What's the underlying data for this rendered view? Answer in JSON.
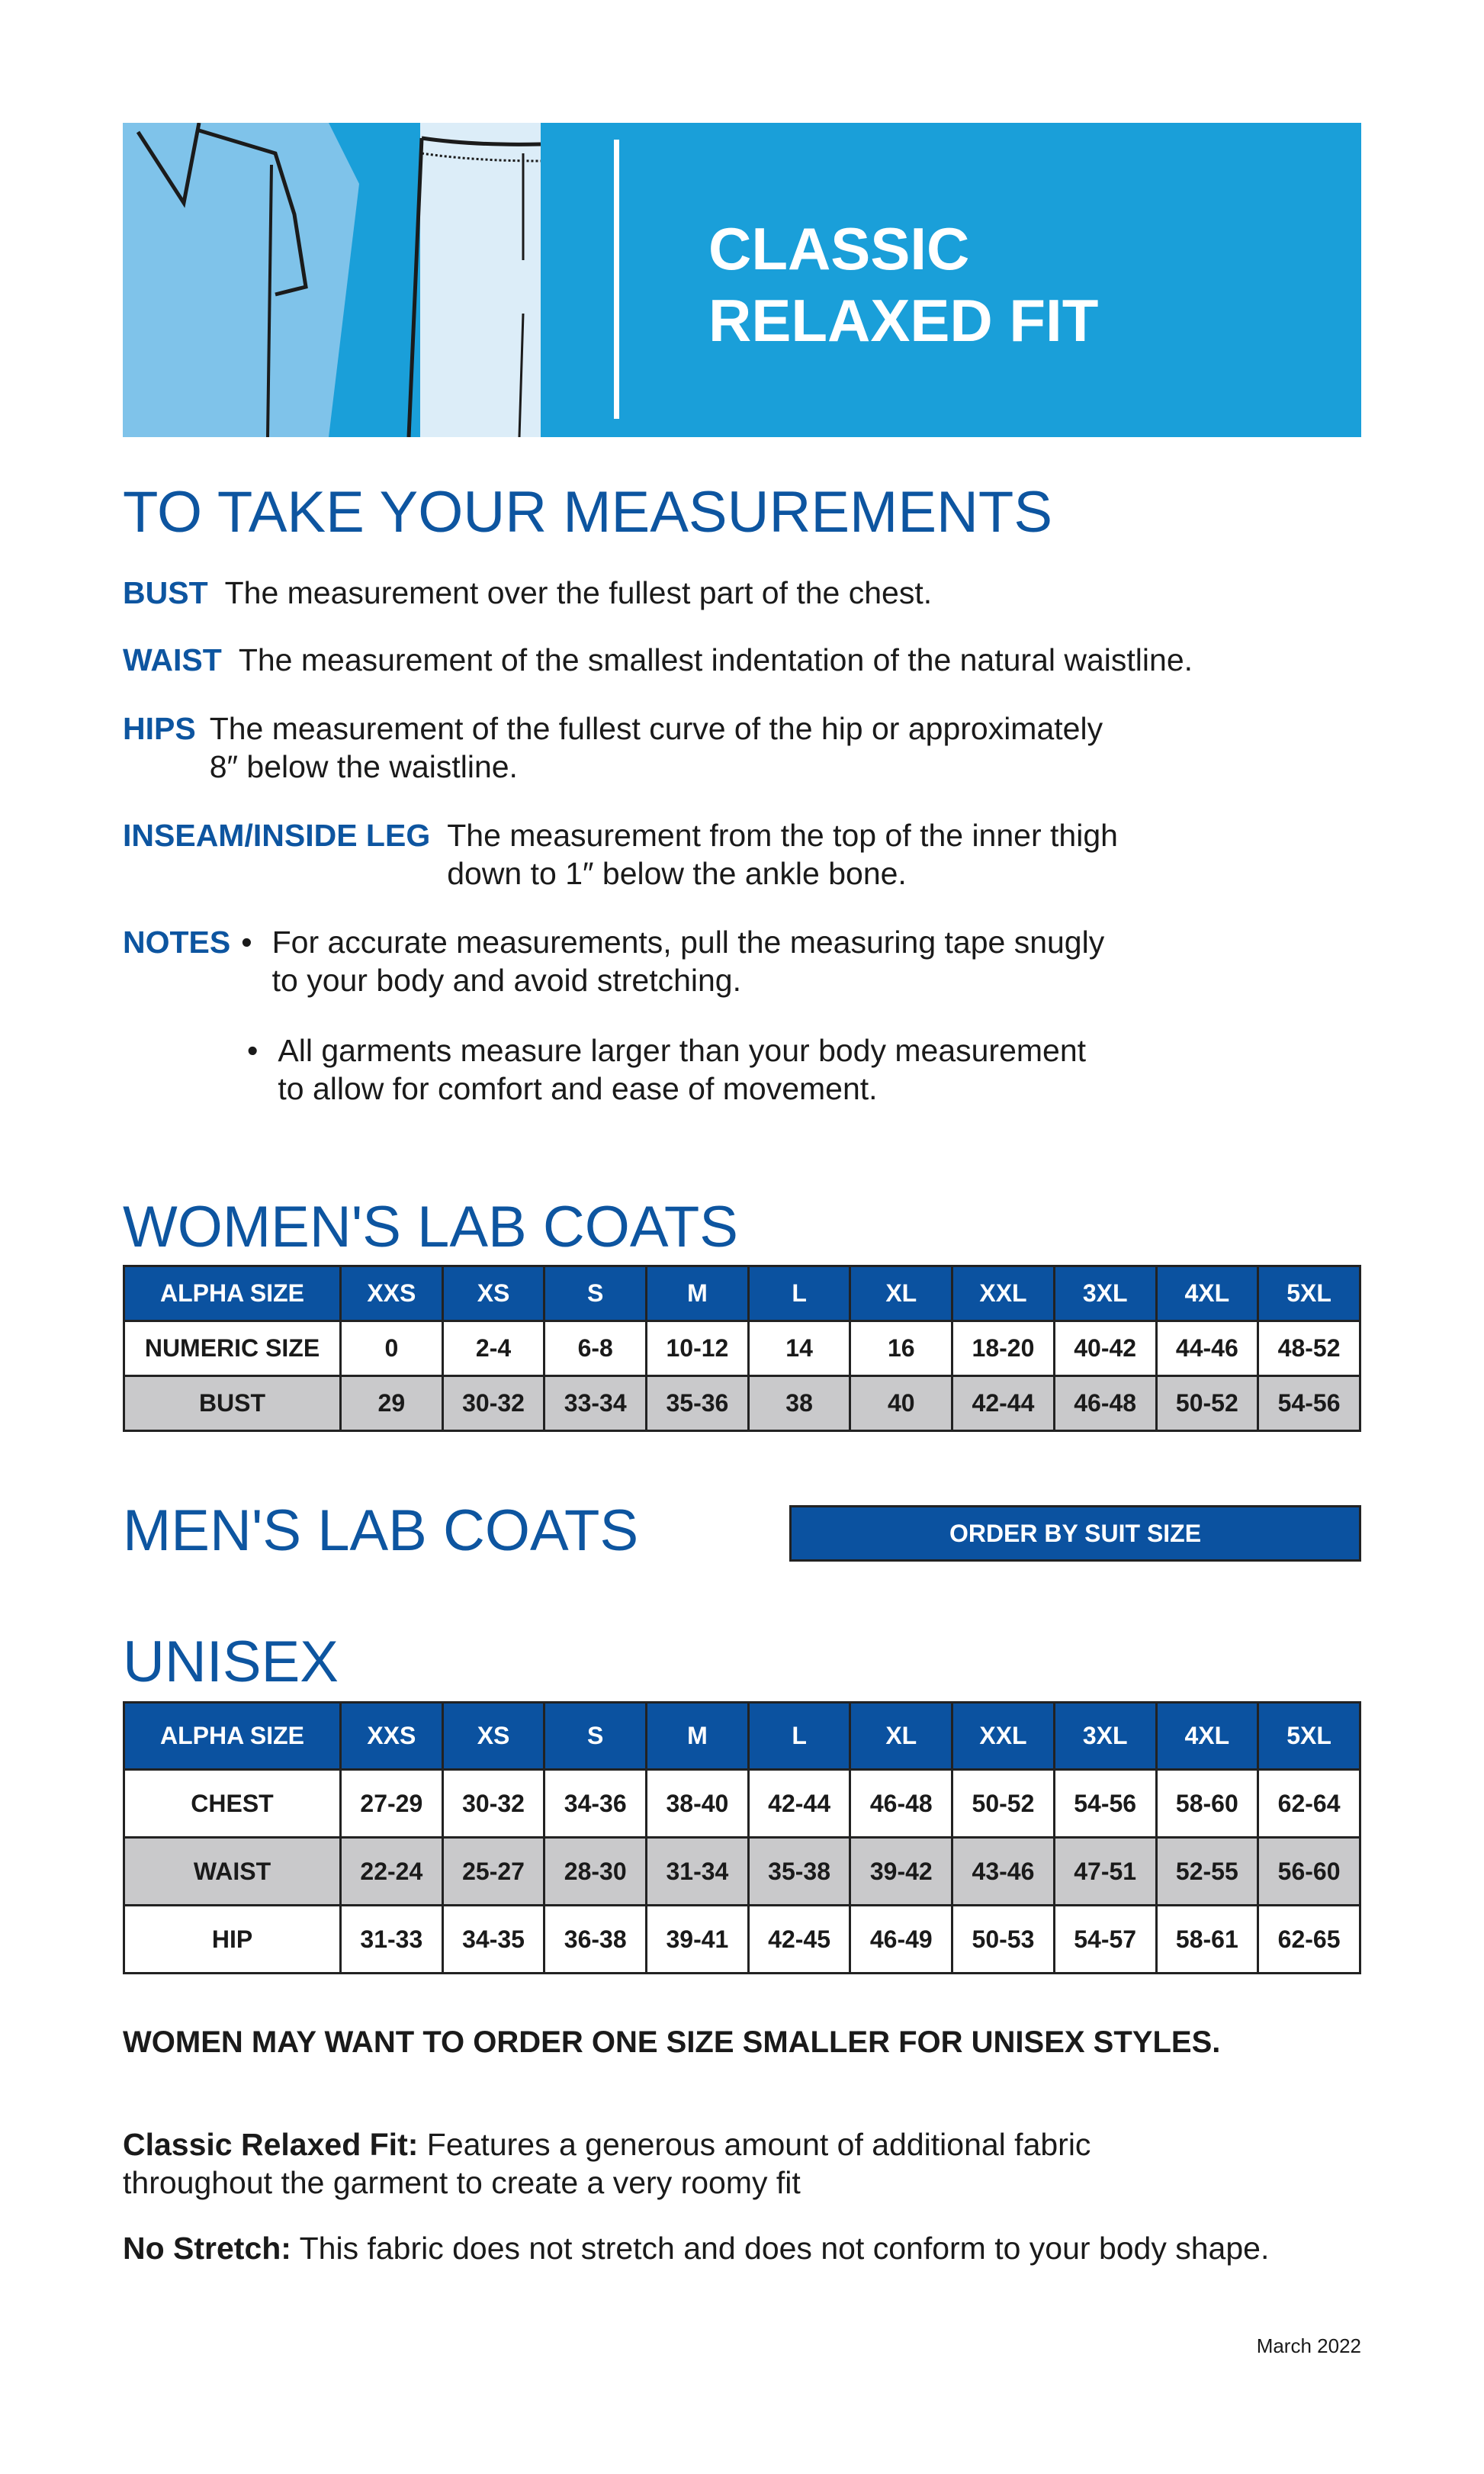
{
  "banner": {
    "title_line1": "CLASSIC",
    "title_line2": "RELAXED FIT"
  },
  "measurements": {
    "heading": "TO TAKE YOUR MEASUREMENTS",
    "items": [
      {
        "term": "BUST",
        "text": "The measurement over the fullest part of the chest."
      },
      {
        "term": "WAIST",
        "text": "The measurement of the smallest indentation of the natural waistline."
      },
      {
        "term": "HIPS",
        "text": "The measurement of the fullest curve of the hip or approximately\n8″ below the waistline."
      },
      {
        "term": "INSEAM/INSIDE LEG",
        "text": "The measurement from the top of the inner thigh\ndown to 1″ below the ankle bone."
      }
    ],
    "notes_term": "NOTES",
    "notes": [
      "For accurate measurements, pull the measuring tape snugly\nto your body and avoid stretching.",
      "All garments measure larger than your body measurement\nto allow for comfort and ease of movement."
    ]
  },
  "womens": {
    "heading": "WOMEN'S LAB COATS",
    "header": [
      "ALPHA SIZE",
      "XXS",
      "XS",
      "S",
      "M",
      "L",
      "XL",
      "XXL",
      "3XL",
      "4XL",
      "5XL"
    ],
    "rows": [
      [
        "NUMERIC SIZE",
        "0",
        "2-4",
        "6-8",
        "10-12",
        "14",
        "16",
        "18-20",
        "40-42",
        "44-46",
        "48-52"
      ],
      [
        "BUST",
        "29",
        "30-32",
        "33-34",
        "35-36",
        "38",
        "40",
        "42-44",
        "46-48",
        "50-52",
        "54-56"
      ]
    ]
  },
  "mens": {
    "heading": "MEN'S LAB COATS",
    "button": "ORDER BY SUIT SIZE"
  },
  "unisex": {
    "heading": "UNISEX",
    "header": [
      "ALPHA SIZE",
      "XXS",
      "XS",
      "S",
      "M",
      "L",
      "XL",
      "XXL",
      "3XL",
      "4XL",
      "5XL"
    ],
    "rows": [
      [
        "CHEST",
        "27-29",
        "30-32",
        "34-36",
        "38-40",
        "42-44",
        "46-48",
        "50-52",
        "54-56",
        "58-60",
        "62-64"
      ],
      [
        "WAIST",
        "22-24",
        "25-27",
        "28-30",
        "31-34",
        "35-38",
        "39-42",
        "43-46",
        "47-51",
        "52-55",
        "56-60"
      ],
      [
        "HIP",
        "31-33",
        "34-35",
        "36-38",
        "39-41",
        "42-45",
        "46-49",
        "50-53",
        "54-57",
        "58-61",
        "62-65"
      ]
    ]
  },
  "footer": {
    "women_note": "WOMEN MAY WANT TO ORDER ONE SIZE SMALLER FOR UNISEX STYLES.",
    "fit_label": "Classic Relaxed Fit:",
    "fit_text": " Features a generous amount of additional fabric\nthroughout the garment to create a very roomy fit",
    "stretch_label": "No Stretch:",
    "stretch_text": " This fabric does not stretch and does not conform to your body shape.",
    "date": "March 2022"
  },
  "colors": {
    "banner": "#1a9fd9",
    "brand_blue": "#0b52a0",
    "gray_row": "#c9c9cb"
  }
}
